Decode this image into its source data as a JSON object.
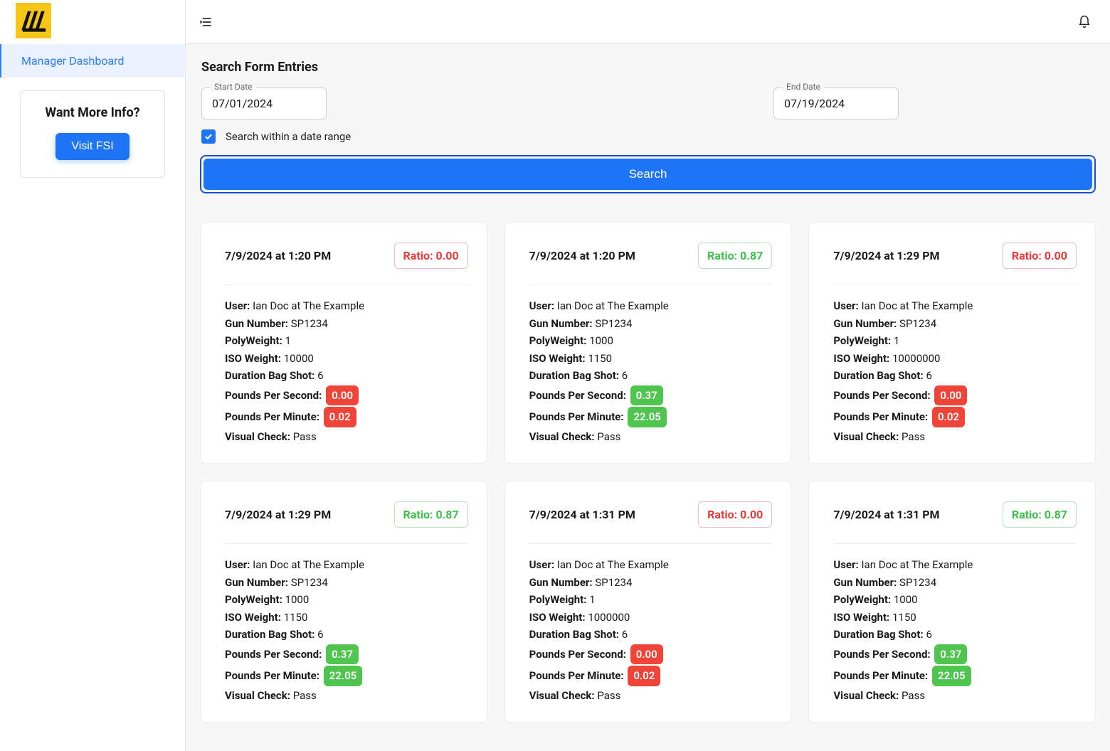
{
  "colors": {
    "red_text": "#e93a3a",
    "red_border": "#f2bcbc",
    "green_text": "#3cc24a",
    "green_border": "#b5e6bc",
    "pill_red": "#f04438",
    "pill_green": "#4fc44f"
  },
  "sidebar": {
    "nav_item": "Manager Dashboard",
    "info_title": "Want More Info?",
    "visit_btn": "Visit FSI"
  },
  "search": {
    "heading": "Search Form Entries",
    "start_label": "Start Date",
    "start_value": "07/01/2024",
    "end_label": "End Date",
    "end_value": "07/19/2024",
    "checkbox_label": "Search within a date range",
    "button": "Search"
  },
  "field_labels": {
    "user": "User:",
    "gun": "Gun Number:",
    "poly": "PolyWeight:",
    "iso": "ISO Weight:",
    "dur": "Duration Bag Shot:",
    "pps": "Pounds Per Second:",
    "ppm": "Pounds Per Minute:",
    "vis": "Visual Check:"
  },
  "entries": [
    {
      "ts": "7/9/2024 at 1:20 PM",
      "ratio_label": "Ratio: 0.00",
      "ratio_status": "bad",
      "user": " Ian Doc at The Example",
      "gun": " SP1234",
      "poly": " 1",
      "iso": " 10000",
      "dur": " 6",
      "pps_val": "0.00",
      "pps_status": "bad",
      "ppm_val": "0.02",
      "ppm_status": "bad",
      "vis": " Pass"
    },
    {
      "ts": "7/9/2024 at 1:20 PM",
      "ratio_label": "Ratio: 0.87",
      "ratio_status": "good",
      "user": " Ian Doc at The Example",
      "gun": " SP1234",
      "poly": " 1000",
      "iso": " 1150",
      "dur": " 6",
      "pps_val": "0.37",
      "pps_status": "good",
      "ppm_val": "22.05",
      "ppm_status": "good",
      "vis": " Pass"
    },
    {
      "ts": "7/9/2024 at 1:29 PM",
      "ratio_label": "Ratio: 0.00",
      "ratio_status": "bad",
      "user": " Ian Doc at The Example",
      "gun": " SP1234",
      "poly": " 1",
      "iso": " 10000000",
      "dur": " 6",
      "pps_val": "0.00",
      "pps_status": "bad",
      "ppm_val": "0.02",
      "ppm_status": "bad",
      "vis": " Pass"
    },
    {
      "ts": "7/9/2024 at 1:29 PM",
      "ratio_label": "Ratio: 0.87",
      "ratio_status": "good",
      "user": " Ian Doc at The Example",
      "gun": " SP1234",
      "poly": " 1000",
      "iso": " 1150",
      "dur": " 6",
      "pps_val": "0.37",
      "pps_status": "good",
      "ppm_val": "22.05",
      "ppm_status": "good",
      "vis": " Pass"
    },
    {
      "ts": "7/9/2024 at 1:31 PM",
      "ratio_label": "Ratio: 0.00",
      "ratio_status": "bad",
      "user": " Ian Doc at The Example",
      "gun": " SP1234",
      "poly": " 1",
      "iso": " 1000000",
      "dur": " 6",
      "pps_val": "0.00",
      "pps_status": "bad",
      "ppm_val": "0.02",
      "ppm_status": "bad",
      "vis": " Pass"
    },
    {
      "ts": "7/9/2024 at 1:31 PM",
      "ratio_label": "Ratio: 0.87",
      "ratio_status": "good",
      "user": " Ian Doc at The Example",
      "gun": " SP1234",
      "poly": " 1000",
      "iso": " 1150",
      "dur": " 6",
      "pps_val": "0.37",
      "pps_status": "good",
      "ppm_val": "22.05",
      "ppm_status": "good",
      "vis": " Pass"
    }
  ]
}
